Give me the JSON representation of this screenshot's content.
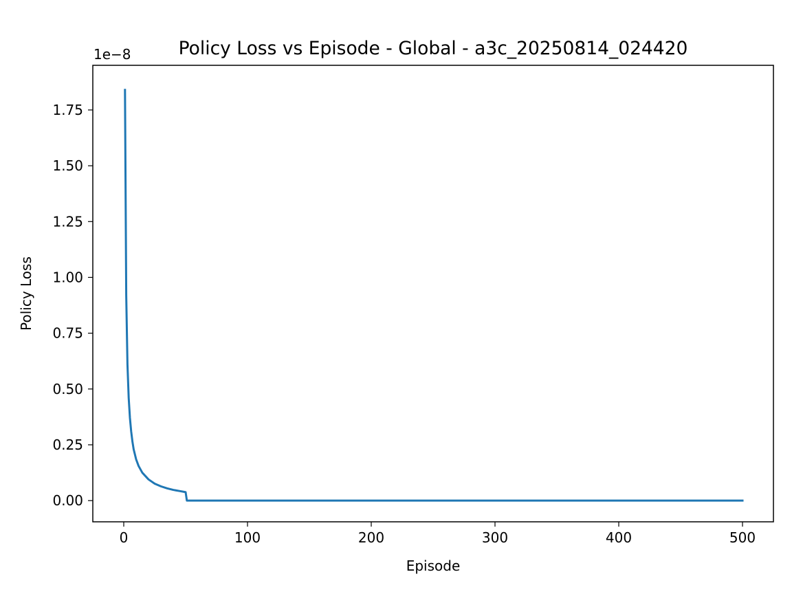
{
  "chart_data": {
    "type": "line",
    "title": "Policy Loss vs Episode - Global - a3c_20250814_024420",
    "xlabel": "Episode",
    "ylabel": "Policy Loss",
    "y_offset_label": "1e−8",
    "xlim": [
      -25,
      525
    ],
    "ylim": [
      -0.095,
      1.95
    ],
    "x_ticks": [
      0,
      100,
      200,
      300,
      400,
      500
    ],
    "x_tick_labels": [
      "0",
      "100",
      "200",
      "300",
      "400",
      "500"
    ],
    "y_ticks": [
      0.0,
      0.25,
      0.5,
      0.75,
      1.0,
      1.25,
      1.5,
      1.75
    ],
    "y_tick_labels": [
      "0.00",
      "0.25",
      "0.50",
      "0.75",
      "1.00",
      "1.25",
      "1.50",
      "1.75"
    ],
    "grid": false,
    "legend": false,
    "series": [
      {
        "color": "#1f77b4",
        "x": [
          1,
          2,
          3,
          4,
          5,
          6,
          7,
          8,
          10,
          12,
          15,
          20,
          25,
          30,
          35,
          40,
          45,
          49,
          50,
          51,
          60,
          100,
          200,
          300,
          400,
          500
        ],
        "y": [
          1.84,
          0.92,
          0.61,
          0.46,
          0.37,
          0.31,
          0.265,
          0.23,
          0.185,
          0.155,
          0.125,
          0.095,
          0.076,
          0.064,
          0.055,
          0.048,
          0.043,
          0.039,
          0.038,
          0.0,
          0.0,
          0.0,
          0.0,
          0.0,
          0.0,
          0.0
        ]
      }
    ]
  }
}
